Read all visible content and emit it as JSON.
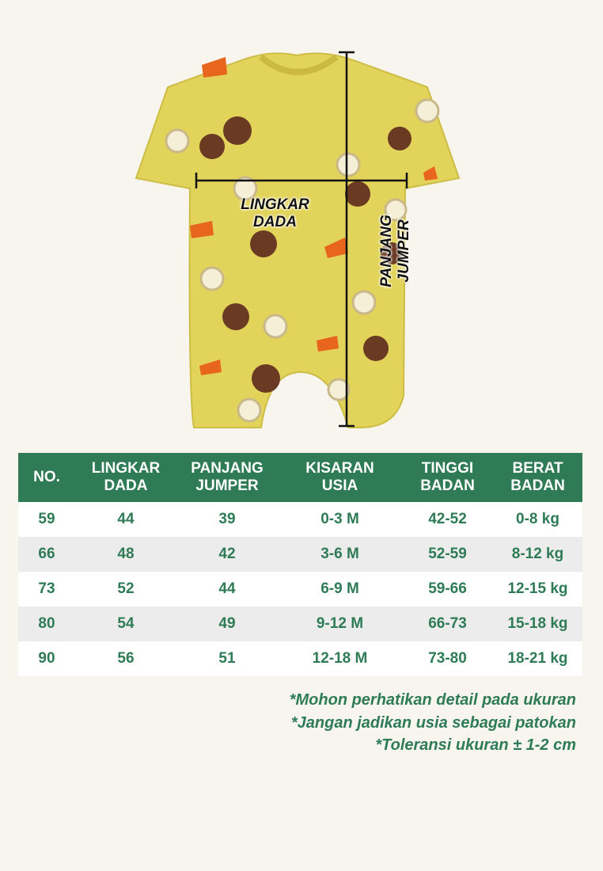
{
  "illustration": {
    "chest_label": [
      "LINGKAR",
      "DADA"
    ],
    "length_label": [
      "PANJANG",
      "JUMPER"
    ],
    "garment_color": "#e2d35a"
  },
  "table": {
    "headers": [
      [
        "NO."
      ],
      [
        "LINGKAR",
        "DADA"
      ],
      [
        "PANJANG",
        "JUMPER"
      ],
      [
        "KISARAN",
        "USIA"
      ],
      [
        "TINGGI",
        "BADAN"
      ],
      [
        "BERAT",
        "BADAN"
      ]
    ],
    "rows": [
      [
        "59",
        "44",
        "39",
        "0-3 M",
        "42-52",
        "0-8 kg"
      ],
      [
        "66",
        "48",
        "42",
        "3-6 M",
        "52-59",
        "8-12 kg"
      ],
      [
        "73",
        "52",
        "44",
        "6-9 M",
        "59-66",
        "12-15 kg"
      ],
      [
        "80",
        "54",
        "49",
        "9-12 M",
        "66-73",
        "15-18 kg"
      ],
      [
        "90",
        "56",
        "51",
        "12-18 M",
        "73-80",
        "18-21 kg"
      ]
    ],
    "header_color": "#2e7b56"
  },
  "notes": [
    "*Mohon perhatikan detail pada ukuran",
    "*Jangan jadikan usia sebagai patokan",
    "*Toleransi ukuran ± 1-2 cm"
  ]
}
